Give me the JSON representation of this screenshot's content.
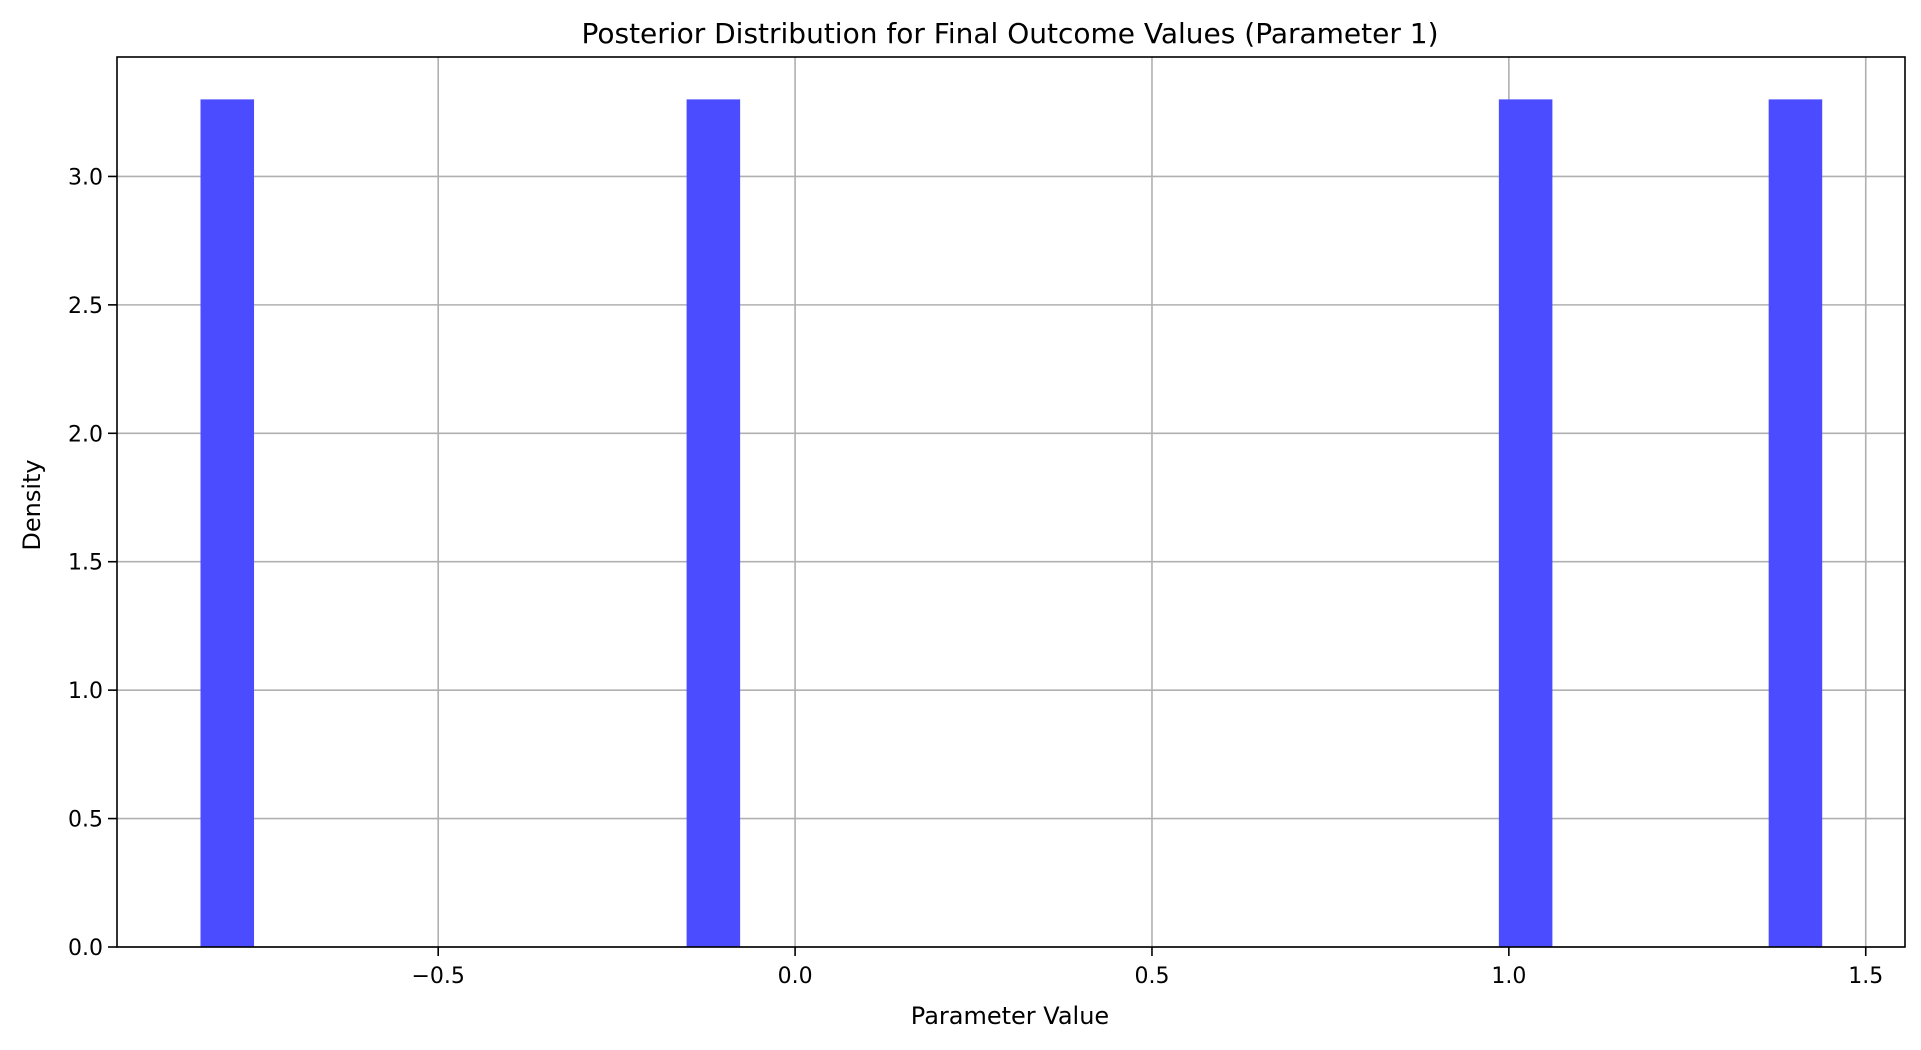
{
  "chart_data": {
    "type": "bar",
    "title": "Posterior Distribution for Final Outcome Values (Parameter 1)",
    "xlabel": "Parameter Value",
    "ylabel": "Density",
    "xlim": [
      -0.95,
      1.555
    ],
    "ylim": [
      0,
      3.465
    ],
    "grid": true,
    "bar_color": "#4b4bff",
    "bins": [
      {
        "x_start": -0.833,
        "x_end": -0.758,
        "value": 3.3
      },
      {
        "x_start": -0.152,
        "x_end": -0.077,
        "value": 3.3
      },
      {
        "x_start": 0.986,
        "x_end": 1.061,
        "value": 3.3
      },
      {
        "x_start": 1.364,
        "x_end": 1.439,
        "value": 3.3
      }
    ],
    "x_ticks": [
      {
        "value": -0.5,
        "label": "−0.5"
      },
      {
        "value": 0.0,
        "label": "0.0"
      },
      {
        "value": 0.5,
        "label": "0.5"
      },
      {
        "value": 1.0,
        "label": "1.0"
      },
      {
        "value": 1.5,
        "label": "1.5"
      }
    ],
    "y_ticks": [
      {
        "value": 0.0,
        "label": "0.0"
      },
      {
        "value": 0.5,
        "label": "0.5"
      },
      {
        "value": 1.0,
        "label": "1.0"
      },
      {
        "value": 1.5,
        "label": "1.5"
      },
      {
        "value": 2.0,
        "label": "2.0"
      },
      {
        "value": 2.5,
        "label": "2.5"
      },
      {
        "value": 3.0,
        "label": "3.0"
      }
    ]
  }
}
